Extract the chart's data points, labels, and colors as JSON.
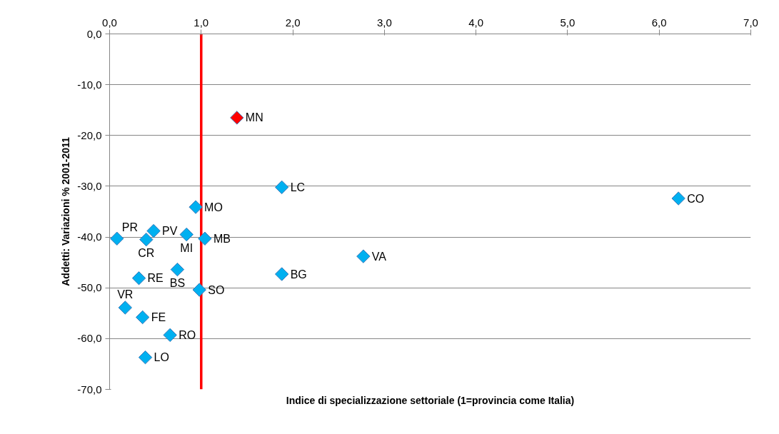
{
  "chart_data": {
    "type": "scatter",
    "xlabel": "Indice di specializzazione settoriale (1=provincia come Italia)",
    "ylabel": "Addetti: Variazioni % 2001-2011",
    "x": [
      0.08,
      0.48,
      0.4,
      0.84,
      0.94,
      1.04,
      0.32,
      0.74,
      0.98,
      0.17,
      0.36,
      0.66,
      0.39,
      1.39,
      1.88,
      1.88,
      2.77,
      6.21
    ],
    "values": [
      -40.3,
      -38.8,
      -40.5,
      -39.5,
      -34.1,
      -40.3,
      -48.1,
      -46.4,
      -50.4,
      -53.9,
      -55.8,
      -59.3,
      -63.7,
      -16.5,
      -30.2,
      -47.3,
      -43.8,
      -32.4
    ],
    "colors": [
      "#00b0f0",
      "#00b0f0",
      "#00b0f0",
      "#00b0f0",
      "#00b0f0",
      "#00b0f0",
      "#00b0f0",
      "#00b0f0",
      "#00b0f0",
      "#00b0f0",
      "#00b0f0",
      "#00b0f0",
      "#00b0f0",
      "#ff0000",
      "#00b0f0",
      "#00b0f0",
      "#00b0f0",
      "#00b0f0"
    ],
    "marker": "diamond",
    "grid": "y",
    "xlim": [
      0,
      7
    ],
    "ylim": [
      -70,
      0
    ],
    "xticks": [
      {
        "value": 0,
        "label": "0,0"
      },
      {
        "value": 1,
        "label": "1,0"
      },
      {
        "value": 2,
        "label": "2,0"
      },
      {
        "value": 3,
        "label": "3,0"
      },
      {
        "value": 4,
        "label": "4,0"
      },
      {
        "value": 5,
        "label": "5,0"
      },
      {
        "value": 6,
        "label": "6,0"
      },
      {
        "value": 7,
        "label": "7,0"
      }
    ],
    "yticks": [
      {
        "value": 0,
        "label": "0,0"
      },
      {
        "value": -10,
        "label": "-10,0"
      },
      {
        "value": -20,
        "label": "-20,0"
      },
      {
        "value": -30,
        "label": "-30,0"
      },
      {
        "value": -40,
        "label": "-40,0"
      },
      {
        "value": -50,
        "label": "-50,0"
      },
      {
        "value": -60,
        "label": "-60,0"
      },
      {
        "value": -70,
        "label": "-70,0"
      }
    ],
    "ref_lines": [
      {
        "axis": "x",
        "value": 1,
        "color": "#ff0000"
      }
    ],
    "annotations": [
      {
        "text": "PR",
        "x": 0.08,
        "y": -40.3
      },
      {
        "text": "PV",
        "x": 0.48,
        "y": -38.8
      },
      {
        "text": "CR",
        "x": 0.4,
        "y": -40.5
      },
      {
        "text": "MI",
        "x": 0.84,
        "y": -39.5
      },
      {
        "text": "MO",
        "x": 0.94,
        "y": -34.1
      },
      {
        "text": "MB",
        "x": 1.04,
        "y": -40.3
      },
      {
        "text": "RE",
        "x": 0.32,
        "y": -48.1
      },
      {
        "text": "BS",
        "x": 0.74,
        "y": -46.4
      },
      {
        "text": "SO",
        "x": 0.98,
        "y": -50.4
      },
      {
        "text": "VR",
        "x": 0.17,
        "y": -53.9
      },
      {
        "text": "FE",
        "x": 0.36,
        "y": -55.8
      },
      {
        "text": "RO",
        "x": 0.66,
        "y": -59.3
      },
      {
        "text": "LO",
        "x": 0.39,
        "y": -63.7
      },
      {
        "text": "MN",
        "x": 1.39,
        "y": -16.5
      },
      {
        "text": "LC",
        "x": 1.88,
        "y": -30.2
      },
      {
        "text": "BG",
        "x": 1.88,
        "y": -47.3
      },
      {
        "text": "VA",
        "x": 2.77,
        "y": -43.8
      },
      {
        "text": "CO",
        "x": 6.21,
        "y": -32.4
      }
    ]
  }
}
